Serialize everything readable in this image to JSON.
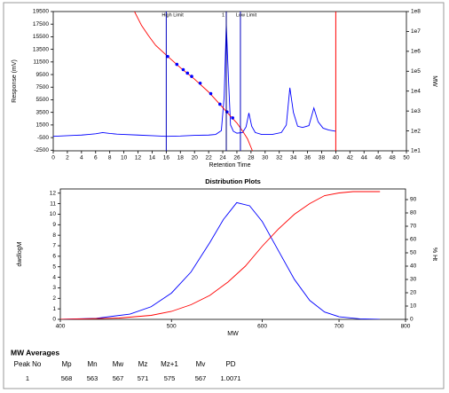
{
  "chart_data": [
    {
      "type": "line",
      "x_label": "Retention Time",
      "y_label": "Response (mV)",
      "y2_label": "MW",
      "xlim": [
        0,
        50
      ],
      "xticks": [
        0,
        2,
        4,
        6,
        8,
        10,
        12,
        14,
        16,
        18,
        20,
        22,
        24,
        26,
        28,
        30,
        32,
        34,
        36,
        38,
        40,
        42,
        44,
        46,
        48,
        50
      ],
      "ylim": [
        -2600,
        19500
      ],
      "yticks": [
        -2500,
        -500,
        1500,
        3500,
        5500,
        7500,
        9500,
        11500,
        13500,
        15500,
        17500,
        19500
      ],
      "y2lim": [
        10,
        100000000
      ],
      "y2_log": true,
      "y2ticks": [
        {
          "value": 10,
          "label": "1e1"
        },
        {
          "value": 100,
          "label": "1e2"
        },
        {
          "value": 1000,
          "label": "1e3"
        },
        {
          "value": 10000,
          "label": "1e4"
        },
        {
          "value": 100000,
          "label": "1e5"
        },
        {
          "value": 1000000,
          "label": "1e6"
        },
        {
          "value": 10000000,
          "label": "1e7"
        },
        {
          "value": 100000000,
          "label": "1e8"
        }
      ],
      "series": [
        {
          "color": "#0000ff",
          "x": [
            0,
            1,
            2,
            3,
            4,
            5,
            6,
            7,
            8,
            9,
            10,
            12,
            14,
            16,
            18,
            20,
            22,
            23,
            23.8,
            24.2,
            24.5,
            24.8,
            25.1,
            25.5,
            26,
            26.8,
            27.3,
            27.7,
            28.1,
            28.6,
            29.5,
            31,
            32.3,
            33,
            33.5,
            34,
            34.6,
            35.3,
            36.2,
            36.9,
            37.5,
            38.2,
            39,
            40
          ],
          "values": [
            -300,
            -250,
            -200,
            -150,
            -100,
            0,
            100,
            300,
            150,
            50,
            0,
            -100,
            -200,
            -300,
            -250,
            -150,
            -100,
            0,
            600,
            6000,
            17500,
            9000,
            1500,
            500,
            200,
            300,
            1200,
            3400,
            1300,
            300,
            0,
            0,
            300,
            1500,
            7400,
            3500,
            1300,
            1100,
            1400,
            4200,
            2000,
            1000,
            700,
            500
          ]
        },
        {
          "color": "#ff0000",
          "axis": "y2",
          "x": [
            11.5,
            12.5,
            13.5,
            14.5,
            16,
            18,
            20,
            22,
            24,
            25,
            26,
            26.8,
            27.5,
            28.2
          ],
          "values": [
            100000000,
            20000000,
            6000000,
            2000000,
            650000,
            150000,
            40000,
            9000,
            1500,
            600,
            250,
            100,
            40,
            10
          ]
        },
        {
          "type": "scatter",
          "color": "#0000ff",
          "axis": "y2",
          "x": [
            16.2,
            17.5,
            18.4,
            19,
            19.6,
            20.8,
            22.3,
            23.6,
            24.6,
            25.4
          ],
          "values": [
            550000,
            220000,
            120000,
            80000,
            55000,
            25000,
            7500,
            2200,
            900,
            450
          ]
        }
      ],
      "markers": [
        {
          "x": 16,
          "label": "High Limit",
          "color": "#0000c0"
        },
        {
          "x": 24.5,
          "label": "1",
          "color": "#000080"
        },
        {
          "x": 26.5,
          "label": "Low Limit",
          "color": "#0000c0"
        },
        {
          "x": 40,
          "color": "#ff0000"
        }
      ]
    },
    {
      "type": "line",
      "title": "Distribution Plots",
      "x_label": "MW",
      "y_label": "dwdlogM",
      "y2_label": "% Ht",
      "x_log": true,
      "xlim": [
        400,
        800
      ],
      "xticks": [
        400,
        500,
        600,
        700,
        800
      ],
      "ylim": [
        0,
        12.4
      ],
      "yticks": [
        0,
        1,
        2,
        3,
        4,
        5,
        6,
        7,
        8,
        9,
        10,
        11,
        12
      ],
      "y2lim": [
        0,
        98
      ],
      "y2ticks": [
        0,
        10,
        20,
        30,
        40,
        50,
        60,
        70,
        80,
        90
      ],
      "series": [
        {
          "color": "#0000ff",
          "x": [
            400,
            430,
            460,
            480,
            500,
            520,
            540,
            555,
            570,
            585,
            600,
            620,
            640,
            660,
            680,
            700,
            730,
            760
          ],
          "values": [
            0,
            0.1,
            0.5,
            1.2,
            2.5,
            4.5,
            7.3,
            9.5,
            11.1,
            10.8,
            9.3,
            6.5,
            3.8,
            1.8,
            0.7,
            0.25,
            0.05,
            0
          ]
        },
        {
          "color": "#ff0000",
          "axis": "y2",
          "x": [
            400,
            450,
            480,
            500,
            520,
            540,
            560,
            580,
            600,
            620,
            640,
            660,
            680,
            700,
            720,
            760
          ],
          "values": [
            0,
            1,
            3,
            6,
            11,
            18,
            28,
            40,
            55,
            68,
            79,
            87,
            93,
            95,
            96,
            96
          ]
        }
      ]
    }
  ],
  "table": {
    "title": "MW Averages",
    "columns": [
      "Peak No",
      "Mp",
      "Mn",
      "Mw",
      "Mz",
      "Mz+1",
      "Mv",
      "PD"
    ],
    "rows": [
      [
        1,
        568,
        563,
        567,
        571,
        575,
        567,
        1.0071
      ]
    ]
  }
}
